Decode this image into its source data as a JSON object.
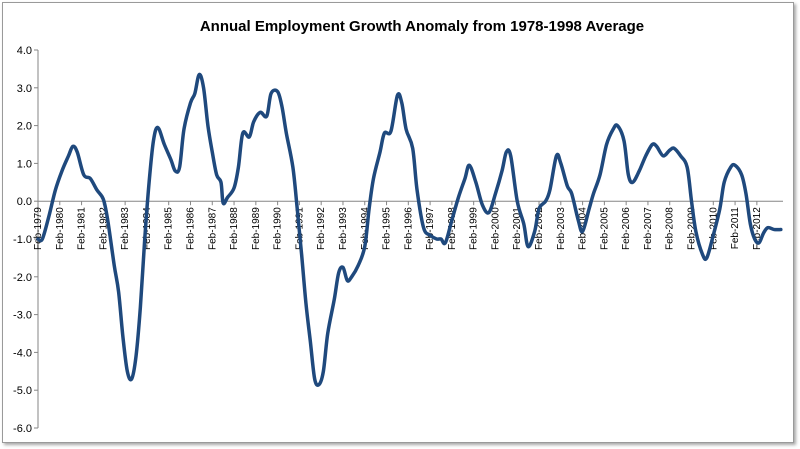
{
  "chart_data": {
    "type": "line",
    "title": "Annual Employment Growth Anomaly from 1978-1998 Average",
    "xlabel": "",
    "ylabel": "",
    "ylim": [
      -6.0,
      4.0
    ],
    "yticks": [
      "4.0",
      "3.0",
      "2.0",
      "1.0",
      "0.0",
      "-1.0",
      "-2.0",
      "-3.0",
      "-4.0",
      "-5.0",
      "-6.0"
    ],
    "xlim": [
      1979.1,
      2013.3
    ],
    "xticks": [
      {
        "label": "Feb-1979",
        "year": 1979.1
      },
      {
        "label": "Feb-1980",
        "year": 1980.1
      },
      {
        "label": "Feb-1981",
        "year": 1981.1
      },
      {
        "label": "Feb-1982",
        "year": 1982.1
      },
      {
        "label": "Feb-1983",
        "year": 1983.1
      },
      {
        "label": "Feb-1984",
        "year": 1984.1
      },
      {
        "label": "Feb-1985",
        "year": 1985.1
      },
      {
        "label": "Feb-1986",
        "year": 1986.1
      },
      {
        "label": "Feb-1987",
        "year": 1987.1
      },
      {
        "label": "Feb-1988",
        "year": 1988.1
      },
      {
        "label": "Feb-1989",
        "year": 1989.1
      },
      {
        "label": "Feb-1990",
        "year": 1990.1
      },
      {
        "label": "Feb-1991",
        "year": 1991.1
      },
      {
        "label": "Feb-1992",
        "year": 1992.1
      },
      {
        "label": "Feb-1993",
        "year": 1993.1
      },
      {
        "label": "Feb-1994",
        "year": 1994.1
      },
      {
        "label": "Feb-1995",
        "year": 1995.1
      },
      {
        "label": "Feb-1996",
        "year": 1996.1
      },
      {
        "label": "Feb-1997",
        "year": 1997.1
      },
      {
        "label": "Feb-1998",
        "year": 1998.1
      },
      {
        "label": "Feb-1999",
        "year": 1999.1
      },
      {
        "label": "Feb-2000",
        "year": 2000.1
      },
      {
        "label": "Feb-2001",
        "year": 2001.1
      },
      {
        "label": "Feb-2002",
        "year": 2002.1
      },
      {
        "label": "Feb-2003",
        "year": 2003.1
      },
      {
        "label": "Feb-2004",
        "year": 2004.1
      },
      {
        "label": "Feb-2005",
        "year": 2005.1
      },
      {
        "label": "Feb-2006",
        "year": 2006.1
      },
      {
        "label": "Feb-2007",
        "year": 2007.1
      },
      {
        "label": "Feb-2008",
        "year": 2008.1
      },
      {
        "label": "Feb-2009",
        "year": 2009.1
      },
      {
        "label": "Feb-2010",
        "year": 2010.1
      },
      {
        "label": "Feb-2011",
        "year": 2011.1
      },
      {
        "label": "Feb-2012",
        "year": 2012.1
      }
    ],
    "grid": false,
    "legend": "none",
    "series": [
      {
        "color": "#1f497d",
        "points": [
          [
            1979.1,
            -1.0
          ],
          [
            1979.3,
            -1.0
          ],
          [
            1979.6,
            -0.4
          ],
          [
            1979.9,
            0.3
          ],
          [
            1980.2,
            0.8
          ],
          [
            1980.5,
            1.2
          ],
          [
            1980.7,
            1.45
          ],
          [
            1980.9,
            1.3
          ],
          [
            1981.2,
            0.7
          ],
          [
            1981.5,
            0.6
          ],
          [
            1981.8,
            0.3
          ],
          [
            1982.1,
            0.05
          ],
          [
            1982.3,
            -0.5
          ],
          [
            1982.6,
            -1.7
          ],
          [
            1982.8,
            -2.4
          ],
          [
            1983.0,
            -3.6
          ],
          [
            1983.2,
            -4.5
          ],
          [
            1983.4,
            -4.7
          ],
          [
            1983.6,
            -4.1
          ],
          [
            1983.8,
            -2.8
          ],
          [
            1984.0,
            -1.0
          ],
          [
            1984.2,
            0.5
          ],
          [
            1984.4,
            1.6
          ],
          [
            1984.6,
            1.95
          ],
          [
            1984.9,
            1.5
          ],
          [
            1985.2,
            1.1
          ],
          [
            1985.4,
            0.8
          ],
          [
            1985.6,
            0.9
          ],
          [
            1985.8,
            1.9
          ],
          [
            1986.1,
            2.6
          ],
          [
            1986.3,
            2.85
          ],
          [
            1986.5,
            3.35
          ],
          [
            1986.7,
            3.0
          ],
          [
            1986.9,
            2.0
          ],
          [
            1987.1,
            1.3
          ],
          [
            1987.3,
            0.7
          ],
          [
            1987.5,
            0.5
          ],
          [
            1987.6,
            -0.05
          ],
          [
            1987.8,
            0.1
          ],
          [
            1988.1,
            0.35
          ],
          [
            1988.3,
            0.9
          ],
          [
            1988.5,
            1.8
          ],
          [
            1988.8,
            1.7
          ],
          [
            1989.0,
            2.1
          ],
          [
            1989.3,
            2.35
          ],
          [
            1989.6,
            2.25
          ],
          [
            1989.8,
            2.85
          ],
          [
            1990.1,
            2.9
          ],
          [
            1990.3,
            2.5
          ],
          [
            1990.5,
            1.8
          ],
          [
            1990.8,
            0.9
          ],
          [
            1991.0,
            -0.2
          ],
          [
            1991.2,
            -1.4
          ],
          [
            1991.4,
            -2.7
          ],
          [
            1991.6,
            -3.7
          ],
          [
            1991.8,
            -4.7
          ],
          [
            1992.0,
            -4.85
          ],
          [
            1992.2,
            -4.5
          ],
          [
            1992.4,
            -3.5
          ],
          [
            1992.7,
            -2.6
          ],
          [
            1992.9,
            -1.9
          ],
          [
            1993.1,
            -1.75
          ],
          [
            1993.3,
            -2.1
          ],
          [
            1993.5,
            -2.0
          ],
          [
            1993.8,
            -1.7
          ],
          [
            1994.1,
            -1.2
          ],
          [
            1994.3,
            -0.2
          ],
          [
            1994.5,
            0.6
          ],
          [
            1994.8,
            1.3
          ],
          [
            1995.0,
            1.8
          ],
          [
            1995.3,
            1.85
          ],
          [
            1995.6,
            2.8
          ],
          [
            1995.8,
            2.6
          ],
          [
            1996.0,
            1.9
          ],
          [
            1996.3,
            1.4
          ],
          [
            1996.5,
            0.3
          ],
          [
            1996.8,
            -0.7
          ],
          [
            1997.1,
            -0.9
          ],
          [
            1997.4,
            -1.0
          ],
          [
            1997.6,
            -1.0
          ],
          [
            1997.8,
            -1.1
          ],
          [
            1998.1,
            -0.5
          ],
          [
            1998.4,
            0.1
          ],
          [
            1998.7,
            0.6
          ],
          [
            1998.9,
            0.95
          ],
          [
            1999.2,
            0.5
          ],
          [
            1999.5,
            -0.1
          ],
          [
            1999.8,
            -0.3
          ],
          [
            2000.1,
            0.2
          ],
          [
            2000.4,
            0.8
          ],
          [
            2000.6,
            1.3
          ],
          [
            2000.8,
            1.2
          ],
          [
            2001.1,
            0.0
          ],
          [
            2001.4,
            -0.6
          ],
          [
            2001.6,
            -1.2
          ],
          [
            2001.9,
            -0.8
          ],
          [
            2002.1,
            -0.2
          ],
          [
            2002.4,
            0.0
          ],
          [
            2002.6,
            0.3
          ],
          [
            2002.9,
            1.2
          ],
          [
            2003.1,
            1.0
          ],
          [
            2003.4,
            0.4
          ],
          [
            2003.6,
            0.2
          ],
          [
            2003.9,
            -0.5
          ],
          [
            2004.1,
            -0.8
          ],
          [
            2004.4,
            -0.2
          ],
          [
            2004.6,
            0.2
          ],
          [
            2004.9,
            0.7
          ],
          [
            2005.2,
            1.5
          ],
          [
            2005.5,
            1.9
          ],
          [
            2005.7,
            2.0
          ],
          [
            2006.0,
            1.6
          ],
          [
            2006.2,
            0.7
          ],
          [
            2006.4,
            0.5
          ],
          [
            2006.7,
            0.8
          ],
          [
            2007.0,
            1.2
          ],
          [
            2007.3,
            1.5
          ],
          [
            2007.5,
            1.45
          ],
          [
            2007.8,
            1.2
          ],
          [
            2008.1,
            1.35
          ],
          [
            2008.3,
            1.4
          ],
          [
            2008.6,
            1.2
          ],
          [
            2008.9,
            0.9
          ],
          [
            2009.1,
            0.0
          ],
          [
            2009.3,
            -0.8
          ],
          [
            2009.6,
            -1.4
          ],
          [
            2009.8,
            -1.5
          ],
          [
            2010.1,
            -0.9
          ],
          [
            2010.4,
            -0.2
          ],
          [
            2010.6,
            0.5
          ],
          [
            2010.9,
            0.9
          ],
          [
            2011.1,
            0.95
          ],
          [
            2011.4,
            0.7
          ],
          [
            2011.6,
            0.2
          ],
          [
            2011.8,
            -0.6
          ],
          [
            2012.0,
            -1.0
          ],
          [
            2012.2,
            -1.1
          ],
          [
            2012.4,
            -0.85
          ],
          [
            2012.6,
            -0.7
          ],
          [
            2012.9,
            -0.75
          ],
          [
            2013.2,
            -0.75
          ]
        ]
      }
    ]
  }
}
